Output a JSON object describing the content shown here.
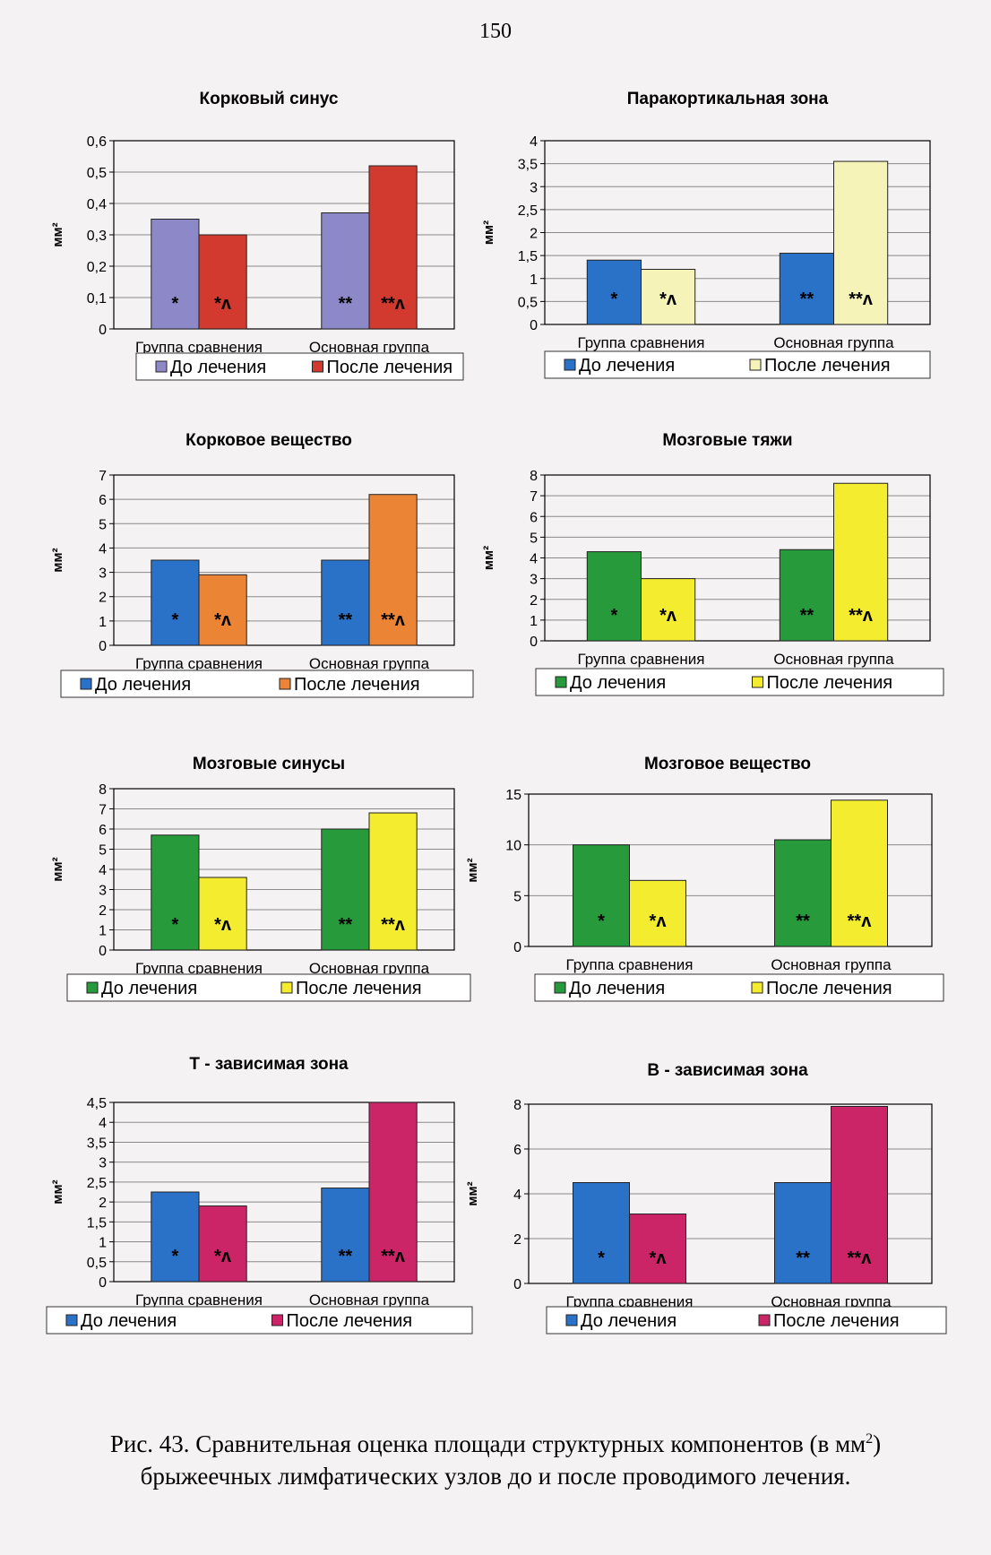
{
  "page_number": "150",
  "caption": {
    "line1_prefix": "Рис. 43. Сравнительная оценка площади структурных компонентов (в мм",
    "line1_sup": "2",
    "line1_suffix": ")",
    "line2": "брыжеечных лимфатических узлов до и после проводимого лечения."
  },
  "colors": {
    "before_blue": "#2a72c8",
    "before_violet": "#8d88c8",
    "before_green": "#279a3c",
    "after_red": "#d23a30",
    "after_orange": "#ec8436",
    "after_yellow": "#f4ec2e",
    "after_light_yellow": "#f6f3b8",
    "after_magenta": "#cc2567"
  },
  "chart_data": [
    {
      "type": "bar",
      "title": "Корковый синус",
      "ylabel": "мм²",
      "categories": [
        "Группа сравнения",
        "Основная группа"
      ],
      "series": [
        {
          "name": "До лечения",
          "values": [
            0.35,
            0.37
          ],
          "color": "#8d88c8",
          "marks": [
            "*",
            "**"
          ]
        },
        {
          "name": "После лечения",
          "values": [
            0.3,
            0.52
          ],
          "color": "#d23a30",
          "marks": [
            "*^",
            "**^"
          ]
        }
      ],
      "ylim": [
        0,
        0.6
      ],
      "yticks": [
        "0",
        "0,1",
        "0,2",
        "0,3",
        "0,4",
        "0,5",
        "0,6"
      ],
      "grid": true,
      "legend": "bottom"
    },
    {
      "type": "bar",
      "title": "Паракортикальная зона",
      "ylabel": "мм²",
      "categories": [
        "Группа сравнения",
        "Основная группа"
      ],
      "series": [
        {
          "name": "До лечения",
          "values": [
            1.4,
            1.55
          ],
          "color": "#2a72c8",
          "marks": [
            "*",
            "**"
          ]
        },
        {
          "name": "После лечения",
          "values": [
            1.2,
            3.55
          ],
          "color": "#f6f3b8",
          "marks": [
            "*^",
            "**^"
          ]
        }
      ],
      "ylim": [
        0,
        4
      ],
      "yticks": [
        "0",
        "0,5",
        "1",
        "1,5",
        "2",
        "2,5",
        "3",
        "3,5",
        "4"
      ],
      "grid": true,
      "legend": "bottom"
    },
    {
      "type": "bar",
      "title": "Корковое вещество",
      "ylabel": "мм²",
      "categories": [
        "Группа сравнения",
        "Основная группа"
      ],
      "series": [
        {
          "name": "До лечения",
          "values": [
            3.5,
            3.5
          ],
          "color": "#2a72c8",
          "marks": [
            "*",
            "**"
          ]
        },
        {
          "name": "После лечения",
          "values": [
            2.9,
            6.2
          ],
          "color": "#ec8436",
          "marks": [
            "*^",
            "**^"
          ]
        }
      ],
      "ylim": [
        0,
        7
      ],
      "yticks": [
        "0",
        "1",
        "2",
        "3",
        "4",
        "5",
        "6",
        "7"
      ],
      "grid": true,
      "legend": "bottom"
    },
    {
      "type": "bar",
      "title": "Мозговые тяжи",
      "ylabel": "мм²",
      "categories": [
        "Группа сравнения",
        "Основная группа"
      ],
      "series": [
        {
          "name": "До лечения",
          "values": [
            4.3,
            4.4
          ],
          "color": "#279a3c",
          "marks": [
            "*",
            "**"
          ]
        },
        {
          "name": "После лечения",
          "values": [
            3.0,
            7.6
          ],
          "color": "#f4ec2e",
          "marks": [
            "*^",
            "**^"
          ]
        }
      ],
      "ylim": [
        0,
        8
      ],
      "yticks": [
        "0",
        "1",
        "2",
        "3",
        "4",
        "5",
        "6",
        "7",
        "8"
      ],
      "grid": true,
      "legend": "bottom"
    },
    {
      "type": "bar",
      "title": "Мозговые синусы",
      "ylabel": "мм²",
      "categories": [
        "Группа сравнения",
        "Основная группа"
      ],
      "series": [
        {
          "name": "До лечения",
          "values": [
            5.7,
            6.0
          ],
          "color": "#279a3c",
          "marks": [
            "*",
            "**"
          ]
        },
        {
          "name": "После лечения",
          "values": [
            3.6,
            6.8
          ],
          "color": "#f4ec2e",
          "marks": [
            "*^",
            "**^"
          ]
        }
      ],
      "ylim": [
        0,
        8
      ],
      "yticks": [
        "0",
        "1",
        "2",
        "3",
        "4",
        "5",
        "6",
        "7",
        "8"
      ],
      "grid": true,
      "legend": "bottom"
    },
    {
      "type": "bar",
      "title": "Мозговое вещество",
      "ylabel": "мм²",
      "categories": [
        "Группа сравнения",
        "Основная группа"
      ],
      "series": [
        {
          "name": "До лечения",
          "values": [
            10.0,
            10.5
          ],
          "color": "#279a3c",
          "marks": [
            "*",
            "**"
          ]
        },
        {
          "name": "После лечения",
          "values": [
            6.5,
            14.4
          ],
          "color": "#f4ec2e",
          "marks": [
            "*^",
            "**^"
          ]
        }
      ],
      "ylim": [
        0,
        15
      ],
      "yticks": [
        "0",
        "5",
        "10",
        "15"
      ],
      "grid": true,
      "legend": "bottom"
    },
    {
      "type": "bar",
      "title": "Т - зависимая зона",
      "ylabel": "мм²",
      "categories": [
        "Группа сравнения",
        "Основная группа"
      ],
      "series": [
        {
          "name": "До лечения",
          "values": [
            2.25,
            2.35
          ],
          "color": "#2a72c8",
          "marks": [
            "*",
            "**"
          ]
        },
        {
          "name": "После лечения",
          "values": [
            1.9,
            4.5
          ],
          "color": "#cc2567",
          "marks": [
            "*^",
            "**^"
          ]
        }
      ],
      "ylim": [
        0,
        4.5
      ],
      "yticks": [
        "0",
        "0,5",
        "1",
        "1,5",
        "2",
        "2,5",
        "3",
        "3,5",
        "4",
        "4,5"
      ],
      "grid": true,
      "legend": "bottom"
    },
    {
      "type": "bar",
      "title": "В - зависимая зона",
      "ylabel": "мм²",
      "categories": [
        "Группа сравнения",
        "Основная группа"
      ],
      "series": [
        {
          "name": "До лечения",
          "values": [
            4.5,
            4.5
          ],
          "color": "#2a72c8",
          "marks": [
            "*",
            "**"
          ]
        },
        {
          "name": "После лечения",
          "values": [
            3.1,
            7.9
          ],
          "color": "#cc2567",
          "marks": [
            "*^",
            "**^"
          ]
        }
      ],
      "ylim": [
        0,
        8
      ],
      "yticks": [
        "0",
        "2",
        "4",
        "6",
        "8"
      ],
      "grid": true,
      "legend": "bottom"
    }
  ]
}
